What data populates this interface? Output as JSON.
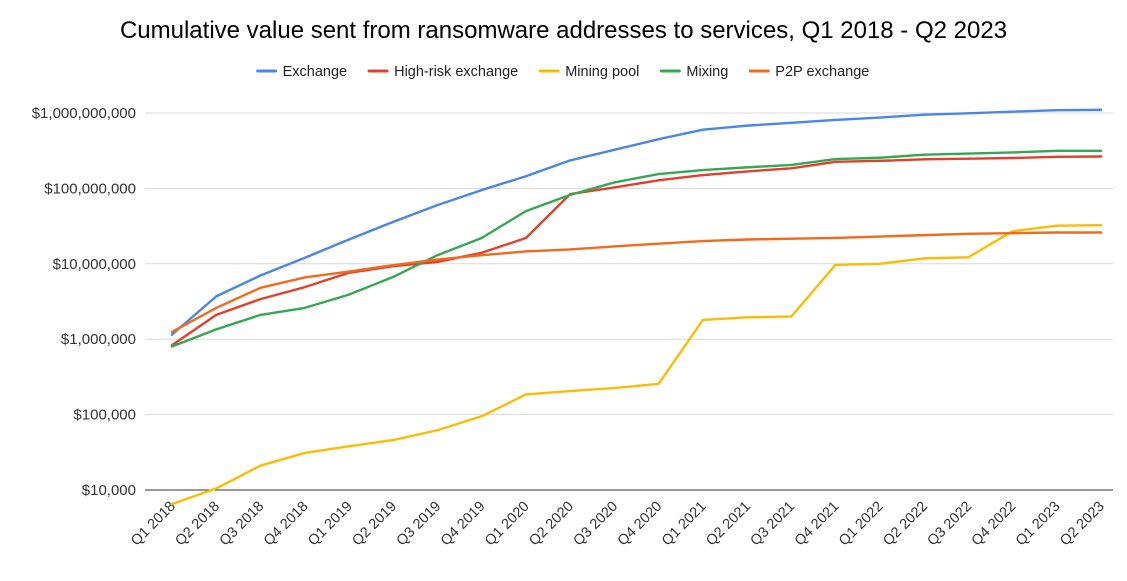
{
  "chart_data": {
    "type": "line",
    "title": "Cumulative value sent from ransomware addresses to services, Q1 2018 - Q2 2023",
    "xlabel": "",
    "ylabel": "",
    "y_scale": "log",
    "ylim": [
      10000,
      1000000000
    ],
    "y_ticks": [
      10000,
      100000,
      1000000,
      10000000,
      100000000,
      1000000000
    ],
    "y_tick_labels": [
      "$10,000",
      "$100,000",
      "$1,000,000",
      "$10,000,000",
      "$100,000,000",
      "$1,000,000,000"
    ],
    "grid": true,
    "legend_position": "top",
    "categories": [
      "Q1 2018",
      "Q2 2018",
      "Q3 2018",
      "Q4 2018",
      "Q1 2019",
      "Q2 2019",
      "Q3 2019",
      "Q4 2019",
      "Q1 2020",
      "Q2 2020",
      "Q3 2020",
      "Q4 2020",
      "Q1 2021",
      "Q2 2021",
      "Q3 2021",
      "Q4 2021",
      "Q1 2022",
      "Q2 2022",
      "Q3 2022",
      "Q4 2022",
      "Q1 2023",
      "Q2 2023"
    ],
    "series": [
      {
        "name": "Exchange",
        "color": "#4a86e8",
        "values": [
          1150000,
          3700000,
          7000000,
          12000000,
          21000000,
          36000000,
          60000000,
          95000000,
          145000000,
          235000000,
          325000000,
          450000000,
          600000000,
          680000000,
          740000000,
          810000000,
          870000000,
          950000000,
          990000000,
          1040000000,
          1090000000,
          1100000000
        ]
      },
      {
        "name": "High-risk exchange",
        "color": "#e0402e",
        "values": [
          830000,
          2100000,
          3400000,
          4900000,
          7600000,
          9300000,
          10600000,
          14000000,
          22000000,
          84000000,
          103000000,
          128000000,
          150000000,
          168000000,
          185000000,
          225000000,
          232000000,
          243000000,
          248000000,
          253000000,
          262000000,
          265000000
        ]
      },
      {
        "name": "Mining pool",
        "color": "#fbbc04",
        "values": [
          6500,
          10500,
          21000,
          31000,
          38000,
          46000,
          62000,
          95000,
          185000,
          205000,
          225000,
          255000,
          1800000,
          1950000,
          2000000,
          9700000,
          10000000,
          11800000,
          12200000,
          27000000,
          32000000,
          32500000
        ]
      },
      {
        "name": "Mixing",
        "color": "#34a853",
        "values": [
          800000,
          1350000,
          2100000,
          2600000,
          3900000,
          6700000,
          13000000,
          22000000,
          50000000,
          82000000,
          120000000,
          155000000,
          175000000,
          190000000,
          205000000,
          245000000,
          255000000,
          280000000,
          290000000,
          300000000,
          315000000,
          315000000
        ]
      },
      {
        "name": "P2P exchange",
        "color": "#f26a1b",
        "values": [
          1250000,
          2600000,
          4800000,
          6600000,
          7900000,
          9600000,
          11400000,
          13000000,
          14600000,
          15500000,
          17000000,
          18500000,
          20000000,
          21000000,
          21500000,
          22000000,
          23000000,
          24000000,
          25000000,
          25500000,
          26000000,
          26000000
        ]
      }
    ]
  }
}
